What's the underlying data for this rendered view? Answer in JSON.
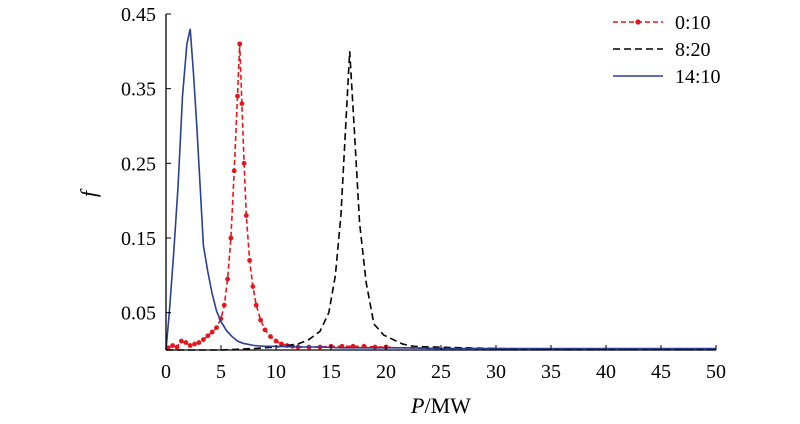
{
  "chart_data": {
    "type": "line",
    "xlabel_italic": "P",
    "xlabel_unit": "/MW",
    "ylabel": "f",
    "xlim": [
      0,
      50
    ],
    "ylim": [
      0,
      0.45
    ],
    "xticks": [
      0,
      5,
      10,
      15,
      20,
      25,
      30,
      35,
      40,
      45,
      50
    ],
    "xtick_labels": [
      "0",
      "5",
      "10",
      "15",
      "20",
      "25",
      "30",
      "35",
      "40",
      "45",
      "50"
    ],
    "yticks": [
      0.05,
      0.15,
      0.25,
      0.35,
      0.45
    ],
    "ytick_labels": [
      "0.05",
      "0.15",
      "0.25",
      "0.35",
      "0.45"
    ],
    "grid": false,
    "legend_position": "top-right",
    "series": [
      {
        "name": "0:10",
        "color": "#e8141c",
        "style": "dashed-markers",
        "points": [
          [
            0.2,
            0.003
          ],
          [
            0.6,
            0.006
          ],
          [
            1.0,
            0.004
          ],
          [
            1.4,
            0.012
          ],
          [
            1.8,
            0.01
          ],
          [
            2.2,
            0.006
          ],
          [
            2.6,
            0.008
          ],
          [
            3.0,
            0.01
          ],
          [
            3.4,
            0.014
          ],
          [
            3.8,
            0.019
          ],
          [
            4.2,
            0.024
          ],
          [
            4.6,
            0.03
          ],
          [
            5.0,
            0.042
          ],
          [
            5.3,
            0.06
          ],
          [
            5.6,
            0.095
          ],
          [
            5.9,
            0.15
          ],
          [
            6.2,
            0.24
          ],
          [
            6.5,
            0.34
          ],
          [
            6.7,
            0.41
          ],
          [
            6.9,
            0.33
          ],
          [
            7.1,
            0.25
          ],
          [
            7.3,
            0.18
          ],
          [
            7.6,
            0.12
          ],
          [
            7.9,
            0.085
          ],
          [
            8.2,
            0.06
          ],
          [
            8.6,
            0.04
          ],
          [
            9.0,
            0.027
          ],
          [
            9.5,
            0.018
          ],
          [
            10.0,
            0.012
          ],
          [
            10.5,
            0.008
          ],
          [
            11.0,
            0.006
          ],
          [
            11.5,
            0.005
          ],
          [
            12.0,
            0.004
          ],
          [
            13.0,
            0.004
          ],
          [
            14.0,
            0.004
          ],
          [
            15.0,
            0.005
          ],
          [
            16.0,
            0.005
          ],
          [
            17.0,
            0.005
          ],
          [
            18.0,
            0.005
          ],
          [
            19.0,
            0.004
          ],
          [
            20.0,
            0.004
          ],
          [
            21.0,
            0.003
          ],
          [
            22.0,
            0.003
          ],
          [
            24.0,
            0.002
          ],
          [
            26.0,
            0.002
          ],
          [
            28.0,
            0.002
          ],
          [
            30.0,
            0.001
          ],
          [
            32.0,
            0.001
          ],
          [
            34.0,
            0.001
          ],
          [
            36.0,
            0.001
          ],
          [
            38.0,
            0.001
          ],
          [
            40.0,
            0.001
          ],
          [
            42.0,
            0.001
          ],
          [
            44.0,
            0.001
          ],
          [
            46.0,
            0.001
          ],
          [
            48.0,
            0.001
          ],
          [
            50.0,
            0.001
          ]
        ]
      },
      {
        "name": "8:20",
        "color": "#000000",
        "style": "dashed",
        "points": [
          [
            0.0,
            0.0
          ],
          [
            5.0,
            0.0
          ],
          [
            8.0,
            0.002
          ],
          [
            10.0,
            0.004
          ],
          [
            12.0,
            0.008
          ],
          [
            13.0,
            0.014
          ],
          [
            14.0,
            0.025
          ],
          [
            14.8,
            0.05
          ],
          [
            15.4,
            0.1
          ],
          [
            15.9,
            0.18
          ],
          [
            16.3,
            0.29
          ],
          [
            16.7,
            0.4
          ],
          [
            17.1,
            0.3
          ],
          [
            17.6,
            0.17
          ],
          [
            18.2,
            0.09
          ],
          [
            18.9,
            0.035
          ],
          [
            19.8,
            0.02
          ],
          [
            20.5,
            0.015
          ],
          [
            21.5,
            0.008
          ],
          [
            22.5,
            0.005
          ],
          [
            24.0,
            0.004
          ],
          [
            27.0,
            0.003
          ],
          [
            30.0,
            0.002
          ],
          [
            35.0,
            0.001
          ],
          [
            40.0,
            0.001
          ],
          [
            45.0,
            0.001
          ],
          [
            50.0,
            0.001
          ]
        ]
      },
      {
        "name": "14:10",
        "color": "#2a3f96",
        "style": "solid",
        "points": [
          [
            0.0,
            0.0
          ],
          [
            0.3,
            0.05
          ],
          [
            0.7,
            0.13
          ],
          [
            1.1,
            0.22
          ],
          [
            1.5,
            0.34
          ],
          [
            1.9,
            0.41
          ],
          [
            2.2,
            0.43
          ],
          [
            2.5,
            0.37
          ],
          [
            2.8,
            0.3
          ],
          [
            3.1,
            0.22
          ],
          [
            3.4,
            0.14
          ],
          [
            3.8,
            0.105
          ],
          [
            4.2,
            0.075
          ],
          [
            4.6,
            0.052
          ],
          [
            5.0,
            0.038
          ],
          [
            5.5,
            0.026
          ],
          [
            6.0,
            0.018
          ],
          [
            6.5,
            0.012
          ],
          [
            7.0,
            0.009
          ],
          [
            8.0,
            0.006
          ],
          [
            9.0,
            0.005
          ],
          [
            10.0,
            0.005
          ],
          [
            12.0,
            0.004
          ],
          [
            14.0,
            0.004
          ],
          [
            16.0,
            0.003
          ],
          [
            18.0,
            0.003
          ],
          [
            20.0,
            0.003
          ],
          [
            22.0,
            0.003
          ],
          [
            25.0,
            0.002
          ],
          [
            30.0,
            0.002
          ],
          [
            35.0,
            0.002
          ],
          [
            40.0,
            0.002
          ],
          [
            45.0,
            0.002
          ],
          [
            50.0,
            0.002
          ]
        ]
      }
    ]
  }
}
